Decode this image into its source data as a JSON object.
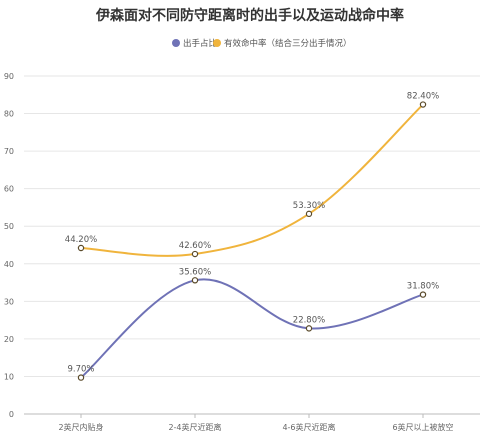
{
  "chart_data": {
    "type": "line",
    "title": "伊森面对不同防守距离时的出手以及运动战命中率",
    "categories": [
      "2英尺内贴身",
      "2-4英尺近距离",
      "4-6英尺近距离",
      "6英尺以上被放空"
    ],
    "ylim": [
      0,
      90
    ],
    "yticks": [
      0,
      10,
      20,
      30,
      40,
      50,
      60,
      70,
      80,
      90
    ],
    "grid": true,
    "legend_position": "top-left",
    "series": [
      {
        "name": "出手占比",
        "values": [
          9.7,
          35.6,
          22.8,
          31.8
        ],
        "labels": [
          "9.70%",
          "35.60%",
          "22.80%",
          "31.80%"
        ],
        "color": "#6f72b6"
      },
      {
        "name": "有效命中率（结合三分出手情况）",
        "values": [
          44.2,
          42.6,
          53.3,
          82.4
        ],
        "labels": [
          "44.20%",
          "42.60%",
          "53.30%",
          "82.40%"
        ],
        "color": "#f0b43c"
      }
    ]
  }
}
